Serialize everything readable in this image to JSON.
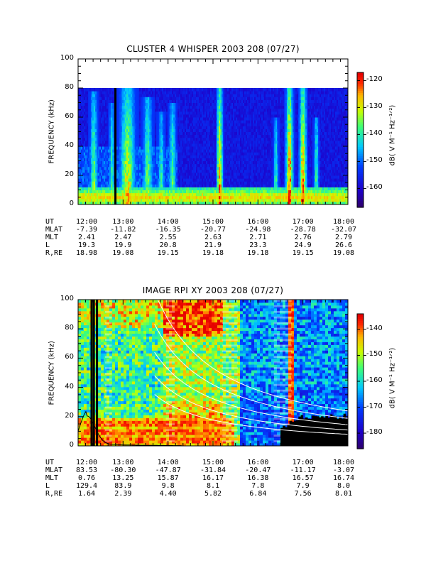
{
  "chart_data": [
    {
      "type": "heatmap",
      "title": "CLUSTER 4 WHISPER 2003 208 (07/27)",
      "ylabel": "FREQUENCY (kHz)",
      "ylim": [
        0,
        100
      ],
      "yticks": [
        "0",
        "20",
        "40",
        "60",
        "80",
        "100"
      ],
      "data_ceiling_khz": 80,
      "colorbar": {
        "label": "dB( V M⁻¹ Hz⁻¹ᐟ²)",
        "range": [
          -167,
          -117
        ],
        "ticks": [
          "-120",
          "-130",
          "-140",
          "-150",
          "-160"
        ]
      },
      "gap_lines_hours": [
        12.83
      ],
      "bursts": [
        {
          "t": 12.35,
          "w": 0.12,
          "top": 78,
          "i": 0.55
        },
        {
          "t": 12.75,
          "w": 0.08,
          "top": 70,
          "i": 0.5
        },
        {
          "t": 13.1,
          "w": 0.25,
          "top": 80,
          "i": 0.7
        },
        {
          "t": 13.55,
          "w": 0.15,
          "top": 75,
          "i": 0.55
        },
        {
          "t": 13.85,
          "w": 0.1,
          "top": 65,
          "i": 0.45
        },
        {
          "t": 14.1,
          "w": 0.12,
          "top": 70,
          "i": 0.5
        },
        {
          "t": 15.15,
          "w": 0.1,
          "top": 80,
          "i": 0.9
        },
        {
          "t": 16.4,
          "w": 0.08,
          "top": 60,
          "i": 0.45
        },
        {
          "t": 16.7,
          "w": 0.12,
          "top": 80,
          "i": 0.95
        },
        {
          "t": 17.0,
          "w": 0.12,
          "top": 80,
          "i": 0.85
        },
        {
          "t": 17.3,
          "w": 0.08,
          "top": 60,
          "i": 0.5
        }
      ],
      "ephemeris": {
        "labels": [
          "UT",
          "MLAT",
          "MLT",
          "L",
          "R,RE"
        ],
        "columns": [
          [
            "12:00",
            "-7.39",
            "2.41",
            "19.3",
            "18.98"
          ],
          [
            "13:00",
            "-11.82",
            "2.47",
            "19.9",
            "19.08"
          ],
          [
            "14:00",
            "-16.35",
            "2.55",
            "20.8",
            "19.15"
          ],
          [
            "15:00",
            "-20.77",
            "2.63",
            "21.9",
            "19.18"
          ],
          [
            "16:00",
            "-24.98",
            "2.71",
            "23.3",
            "19.18"
          ],
          [
            "17:00",
            "-28.78",
            "2.76",
            "24.9",
            "19.15"
          ],
          [
            "18:00",
            "-32.07",
            "2.79",
            "26.6",
            "19.08"
          ]
        ]
      }
    },
    {
      "type": "heatmap",
      "title": "IMAGE RPI XY 2003 208 (07/27)",
      "ylabel": "FREQUENCY (kHz)",
      "ylim": [
        0,
        100
      ],
      "yticks": [
        "0",
        "20",
        "40",
        "60",
        "80",
        "100"
      ],
      "colorbar": {
        "label": "dB( V M⁻¹ Hz⁻¹ᐟ²)",
        "range": [
          -186,
          -134
        ],
        "ticks": [
          "-140",
          "-150",
          "-160",
          "-170",
          "-180"
        ]
      },
      "gap_lines_hours": [
        12.3,
        12.35,
        12.42
      ],
      "white_gap_hours": [
        12.6,
        12.75,
        13.95,
        14.15,
        15.2,
        15.55,
        16.35,
        16.75
      ],
      "black_region": {
        "t_start": 16.5,
        "t_end": 18.0,
        "f_top": 22
      },
      "white_curves_k": [
        55,
        75,
        100,
        130,
        165
      ],
      "black_curve": {
        "peak_t": 12.2,
        "peak_f": 19
      },
      "ephemeris": {
        "labels": [
          "UT",
          "MLAT",
          "MLT",
          "L",
          "R,RE"
        ],
        "columns": [
          [
            "12:00",
            "83.53",
            "0.76",
            "129.4",
            "1.64"
          ],
          [
            "13:00",
            "-80.30",
            "13.25",
            "83.9",
            "2.39"
          ],
          [
            "14:00",
            "-47.87",
            "15.87",
            "9.8",
            "4.40"
          ],
          [
            "15:00",
            "-31.84",
            "16.17",
            "8.1",
            "5.82"
          ],
          [
            "16:00",
            "-20.47",
            "16.38",
            "7.8",
            "6.84"
          ],
          [
            "17:00",
            "-11.17",
            "16.57",
            "7.9",
            "7.56"
          ],
          [
            "18:00",
            "-3.07",
            "16.74",
            "8.0",
            "8.01"
          ]
        ]
      }
    }
  ]
}
